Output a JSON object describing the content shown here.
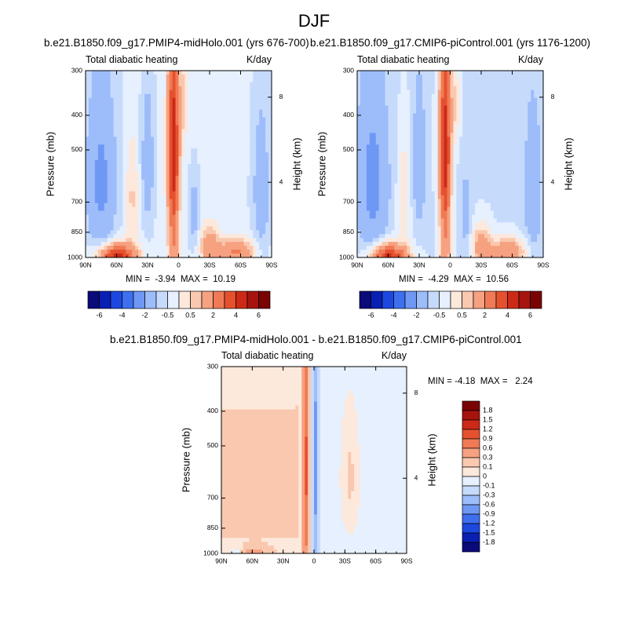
{
  "page_title": "DJF",
  "panels": [
    {
      "case": "b.e21.B1850.f09_g17.PMIP4-midHolo.001 (yrs 676-700)",
      "left_label": "Total diabatic heating",
      "right_label": "K/day",
      "min_max": "MIN =  -3.94  MAX =  10.19"
    },
    {
      "case": "b.e21.B1850.f09_g17.CMIP6-piControl.001 (yrs 1176-1200)",
      "left_label": "Total diabatic heating",
      "right_label": "K/day",
      "min_max": "MIN =  -4.29  MAX =  10.56"
    },
    {
      "case": "b.e21.B1850.f09_g17.PMIP4-midHolo.001 - b.e21.B1850.f09_g17.CMIP6-piControl.001",
      "left_label": "Total diabatic heating",
      "right_label": "K/day",
      "min_max": "MIN = -4.18  MAX =   2.24"
    }
  ],
  "chart_data": [
    {
      "type": "heatmap",
      "panel": "top-left",
      "xlabel": "",
      "ylabel": "Pressure (mb)",
      "y2label": "Height (km)",
      "x_ticks": [
        "90N",
        "60N",
        "30N",
        "0",
        "30S",
        "60S",
        "90S"
      ],
      "x_tick_values": [
        90,
        60,
        30,
        0,
        -30,
        -60,
        -90
      ],
      "y_ticks": [
        "300",
        "400",
        "500",
        "700",
        "850",
        "1000"
      ],
      "y_tick_values": [
        300,
        400,
        500,
        700,
        850,
        1000
      ],
      "y_scale": "log",
      "y2_ticks": [
        "8",
        "4"
      ],
      "colorbar": {
        "position": "bottom",
        "labels": [
          "-6",
          "-4",
          "-2",
          "-0.5",
          "0.5",
          "2",
          "4",
          "6"
        ],
        "colors": [
          "#0a0a7a",
          "#0a1fb3",
          "#1c48e0",
          "#3e6fef",
          "#6f98f5",
          "#9dbcfa",
          "#c6dafc",
          "#e6f0fe",
          "#fde8dc",
          "#f9c8ae",
          "#f6a180",
          "#f07a55",
          "#e5512f",
          "#cc2a17",
          "#a7140d",
          "#7a0303"
        ]
      },
      "regions": [
        {
          "description": "broad weak cooling throughout mid troposphere",
          "value": -0.3
        },
        {
          "description": "cooling 90N-60N mid troposphere",
          "value": -2
        },
        {
          "description": "narrow heating column near equator (5N-5S)",
          "value": 3
        },
        {
          "description": "boundary layer heating 60N-30N",
          "value": 4
        }
      ]
    },
    {
      "type": "heatmap",
      "panel": "top-right",
      "xlabel": "",
      "ylabel": "Pressure (mb)",
      "y2label": "Height (km)",
      "x_ticks": [
        "90N",
        "60N",
        "30N",
        "0",
        "30S",
        "60S",
        "90S"
      ],
      "x_tick_values": [
        90,
        60,
        30,
        0,
        -30,
        -60,
        -90
      ],
      "y_ticks": [
        "300",
        "400",
        "500",
        "700",
        "850",
        "1000"
      ],
      "y_tick_values": [
        300,
        400,
        500,
        700,
        850,
        1000
      ],
      "y_scale": "log",
      "y2_ticks": [
        "8",
        "4"
      ],
      "colorbar": {
        "position": "bottom",
        "labels": [
          "-6",
          "-4",
          "-2",
          "-0.5",
          "0.5",
          "2",
          "4",
          "6"
        ],
        "colors": [
          "#0a0a7a",
          "#0a1fb3",
          "#1c48e0",
          "#3e6fef",
          "#6f98f5",
          "#9dbcfa",
          "#c6dafc",
          "#e6f0fe",
          "#fde8dc",
          "#f9c8ae",
          "#f6a180",
          "#f07a55",
          "#e5512f",
          "#cc2a17",
          "#a7140d",
          "#7a0303"
        ]
      },
      "regions": [
        {
          "description": "broad weak cooling throughout mid troposphere",
          "value": -0.3
        },
        {
          "description": "cooling 90N-60N mid troposphere",
          "value": -2
        },
        {
          "description": "narrow heating column near equator (5N-5S)",
          "value": 3
        },
        {
          "description": "boundary layer heating 60N-30N",
          "value": 4
        }
      ]
    },
    {
      "type": "heatmap",
      "panel": "bottom-difference",
      "xlabel": "",
      "ylabel": "Pressure (mb)",
      "y2label": "Height (km)",
      "x_ticks": [
        "90N",
        "60N",
        "30N",
        "0",
        "30S",
        "60S",
        "90S"
      ],
      "x_tick_values": [
        90,
        60,
        30,
        0,
        -30,
        -60,
        -90
      ],
      "y_ticks": [
        "300",
        "400",
        "500",
        "700",
        "850",
        "1000"
      ],
      "y_tick_values": [
        300,
        400,
        500,
        700,
        850,
        1000
      ],
      "y_scale": "log",
      "y2_ticks": [
        "8",
        "4"
      ],
      "colorbar": {
        "position": "right",
        "labels": [
          "1.8",
          "1.5",
          "1.2",
          "0.9",
          "0.6",
          "0.3",
          "0.1",
          "0",
          "-0.1",
          "-0.3",
          "-0.6",
          "-0.9",
          "-1.2",
          "-1.5",
          "-1.8"
        ],
        "colors": [
          "#7a0303",
          "#a7140d",
          "#cc2a17",
          "#e5512f",
          "#f07a55",
          "#f6a180",
          "#f9c8ae",
          "#fde8dc",
          "#e6f0fe",
          "#c6dafc",
          "#9dbcfa",
          "#6f98f5",
          "#3e6fef",
          "#1c48e0",
          "#0a1fb3",
          "#0a0a7a"
        ]
      },
      "regions": [
        {
          "description": "weak positive difference north of ~15N",
          "value": 0.1
        },
        {
          "description": "weak negative difference south of equator",
          "value": -0.1
        },
        {
          "description": "positive difference column near 8N",
          "value": 0.6
        },
        {
          "description": "negative difference column near 2S",
          "value": -0.6
        }
      ]
    }
  ]
}
